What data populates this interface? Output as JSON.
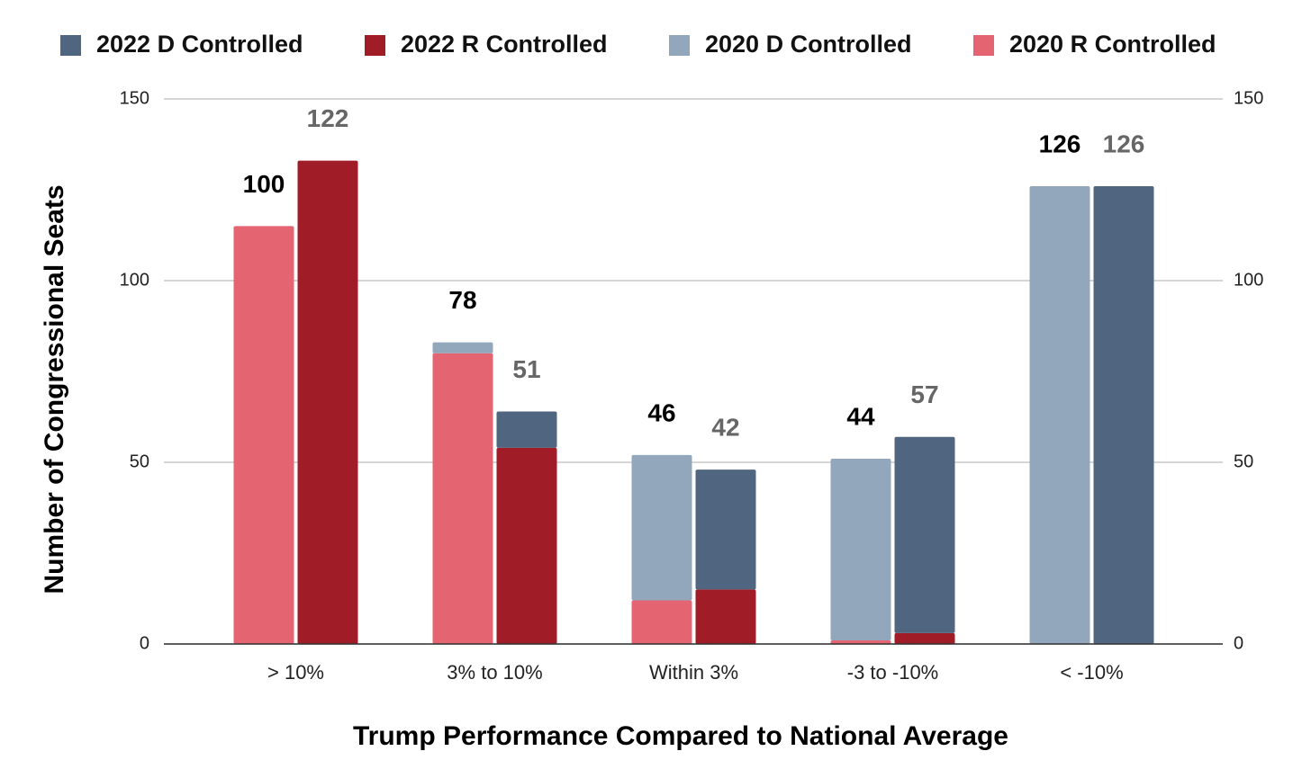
{
  "chart_data": {
    "type": "stacked_grouped_bar",
    "x_label": "Trump Performance Compared to National Average",
    "y_label": "Number of Congressional Seats",
    "categories": [
      "> 10%",
      "3% to 10%",
      "Within 3%",
      "-3 to -10%",
      "< -10%"
    ],
    "series": [
      {
        "name": "2022 D Controlled",
        "color": "#506680",
        "stack": 1,
        "values": [
          0,
          10,
          33,
          54,
          126
        ]
      },
      {
        "name": "2022 R Controlled",
        "color": "#a01c27",
        "stack": 1,
        "values": [
          133,
          54,
          15,
          3,
          0
        ]
      },
      {
        "name": "2020 D Controlled",
        "color": "#92a7bb",
        "stack": 0,
        "values": [
          0,
          3,
          40,
          50,
          126
        ]
      },
      {
        "name": "2020 R Controlled",
        "color": "#e46571",
        "stack": 0,
        "values": [
          115,
          80,
          12,
          1,
          0
        ]
      }
    ],
    "annotations": [
      {
        "stack": 0,
        "color": "#000000",
        "texts": [
          "100",
          "78",
          "46",
          "44",
          "126"
        ]
      },
      {
        "stack": 1,
        "color": "#666666",
        "texts": [
          "122",
          "51",
          "42",
          "57",
          "126"
        ]
      }
    ],
    "ylim": [
      0,
      150
    ],
    "yticks": [
      0,
      50,
      100,
      150
    ],
    "y2lim": [
      0,
      150
    ],
    "y2ticks": [
      0,
      50,
      100,
      150
    ],
    "grid": true,
    "legend": "top"
  }
}
